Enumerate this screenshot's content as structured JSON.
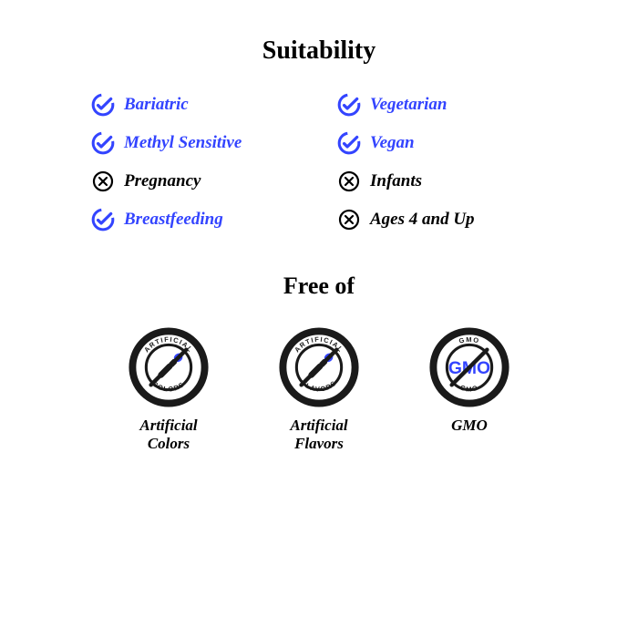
{
  "colors": {
    "blue": "#3344ff",
    "black": "#000000",
    "badge_dark": "#1a1a1a"
  },
  "typography": {
    "heading_fontsize": 28,
    "item_fontsize": 19,
    "freeof_heading_fontsize": 26,
    "free_label_fontsize": 17
  },
  "headings": {
    "suitability": "Suitability",
    "free_of": "Free of"
  },
  "suitability": [
    {
      "label": "Bariatric",
      "suitable": true
    },
    {
      "label": "Vegetarian",
      "suitable": true
    },
    {
      "label": "Methyl Sensitive",
      "suitable": true
    },
    {
      "label": "Vegan",
      "suitable": true
    },
    {
      "label": "Pregnancy",
      "suitable": false
    },
    {
      "label": "Infants",
      "suitable": false
    },
    {
      "label": "Breastfeeding",
      "suitable": true
    },
    {
      "label": "Ages 4 and Up",
      "suitable": false
    }
  ],
  "free_of": [
    {
      "label": "Artificial Colors",
      "arc_top": "ARTIFICIAL",
      "arc_bottom": "COLORS",
      "icon": "dropper"
    },
    {
      "label": "Artificial Flavors",
      "arc_top": "ARTIFICIAL",
      "arc_bottom": "FLAVORS",
      "icon": "dropper"
    },
    {
      "label": "GMO",
      "arc_top": "GMO",
      "arc_bottom": "GMO",
      "icon": "gmo"
    }
  ]
}
